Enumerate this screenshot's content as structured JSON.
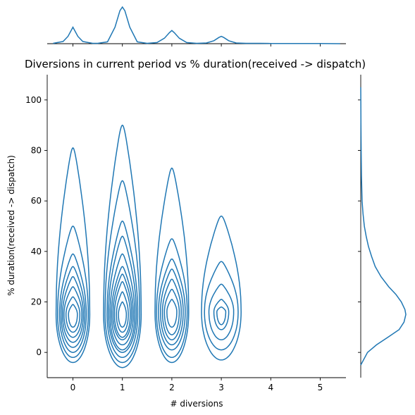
{
  "chart_data": {
    "type": "kde-jointplot",
    "title": "Diversions in current period vs % duration(received -> dispatch)",
    "xlabel": "# diversions",
    "ylabel": "% duration(received -> dispatch)",
    "xlim": [
      -0.52,
      5.52
    ],
    "ylim": [
      -10,
      110
    ],
    "x_ticks": [
      0,
      1,
      2,
      3,
      4,
      5
    ],
    "y_ticks": [
      0,
      20,
      40,
      60,
      80,
      100
    ],
    "line_color": "#1f77b4",
    "groups": [
      {
        "x": 0,
        "center_y": 15,
        "contour_levels": [
          {
            "hw": 0.34,
            "y_min": -4,
            "y_max": 81
          },
          {
            "hw": 0.31,
            "y_min": -2,
            "y_max": 50
          },
          {
            "hw": 0.27,
            "y_min": 0,
            "y_max": 39
          },
          {
            "hw": 0.24,
            "y_min": 2,
            "y_max": 34
          },
          {
            "hw": 0.21,
            "y_min": 4,
            "y_max": 30
          },
          {
            "hw": 0.18,
            "y_min": 6,
            "y_max": 26
          },
          {
            "hw": 0.14,
            "y_min": 8,
            "y_max": 22
          },
          {
            "hw": 0.09,
            "y_min": 10,
            "y_max": 19
          }
        ]
      },
      {
        "x": 1,
        "center_y": 15,
        "contour_levels": [
          {
            "hw": 0.38,
            "y_min": -6,
            "y_max": 90
          },
          {
            "hw": 0.35,
            "y_min": -4,
            "y_max": 68
          },
          {
            "hw": 0.31,
            "y_min": -2,
            "y_max": 52
          },
          {
            "hw": 0.28,
            "y_min": 0,
            "y_max": 46
          },
          {
            "hw": 0.25,
            "y_min": 1,
            "y_max": 39
          },
          {
            "hw": 0.22,
            "y_min": 3,
            "y_max": 34
          },
          {
            "hw": 0.19,
            "y_min": 5,
            "y_max": 31
          },
          {
            "hw": 0.16,
            "y_min": 6,
            "y_max": 28
          },
          {
            "hw": 0.12,
            "y_min": 8,
            "y_max": 24
          },
          {
            "hw": 0.08,
            "y_min": 10,
            "y_max": 20
          }
        ]
      },
      {
        "x": 2,
        "center_y": 16,
        "contour_levels": [
          {
            "hw": 0.34,
            "y_min": -4,
            "y_max": 73
          },
          {
            "hw": 0.31,
            "y_min": -2,
            "y_max": 45
          },
          {
            "hw": 0.27,
            "y_min": 1,
            "y_max": 37
          },
          {
            "hw": 0.23,
            "y_min": 3,
            "y_max": 33
          },
          {
            "hw": 0.19,
            "y_min": 5,
            "y_max": 29
          },
          {
            "hw": 0.15,
            "y_min": 7,
            "y_max": 25
          },
          {
            "hw": 0.1,
            "y_min": 10,
            "y_max": 21
          }
        ]
      },
      {
        "x": 3,
        "center_y": 16,
        "contour_levels": [
          {
            "hw": 0.4,
            "y_min": -3,
            "y_max": 54
          },
          {
            "hw": 0.34,
            "y_min": 1,
            "y_max": 36
          },
          {
            "hw": 0.25,
            "y_min": 5,
            "y_max": 27
          },
          {
            "hw": 0.15,
            "y_min": 9,
            "y_max": 21
          },
          {
            "hw": 0.09,
            "y_min": 11,
            "y_max": 18
          }
        ]
      }
    ],
    "marginal_x_density": {
      "x": [
        -0.4,
        -0.2,
        -0.1,
        0,
        0.1,
        0.2,
        0.4,
        0.5,
        0.7,
        0.85,
        0.95,
        1,
        1.05,
        1.15,
        1.3,
        1.5,
        1.7,
        1.85,
        1.95,
        2,
        2.05,
        2.15,
        2.3,
        2.5,
        2.7,
        2.85,
        2.95,
        3,
        3.05,
        3.15,
        3.3,
        3.5,
        3.8,
        4,
        4.5,
        5,
        5.4
      ],
      "y": [
        0.01,
        0.06,
        0.2,
        0.45,
        0.2,
        0.06,
        0.01,
        0.01,
        0.05,
        0.45,
        0.9,
        1,
        0.9,
        0.45,
        0.05,
        0.01,
        0.03,
        0.15,
        0.3,
        0.36,
        0.3,
        0.15,
        0.03,
        0.01,
        0.02,
        0.08,
        0.17,
        0.2,
        0.17,
        0.08,
        0.02,
        0.01,
        0.01,
        0.005,
        0.005,
        0.003,
        0.0
      ]
    },
    "marginal_y_density": {
      "y": [
        -5,
        0,
        3,
        6,
        9,
        12,
        15,
        17,
        20,
        23,
        26,
        30,
        34,
        38,
        42,
        46,
        50,
        55,
        60,
        70,
        80,
        90,
        100,
        105
      ],
      "x": [
        0.0,
        0.15,
        0.35,
        0.6,
        0.85,
        0.96,
        1.0,
        0.98,
        0.9,
        0.78,
        0.62,
        0.45,
        0.32,
        0.24,
        0.17,
        0.12,
        0.08,
        0.05,
        0.03,
        0.015,
        0.01,
        0.005,
        0.002,
        0.0
      ]
    }
  }
}
